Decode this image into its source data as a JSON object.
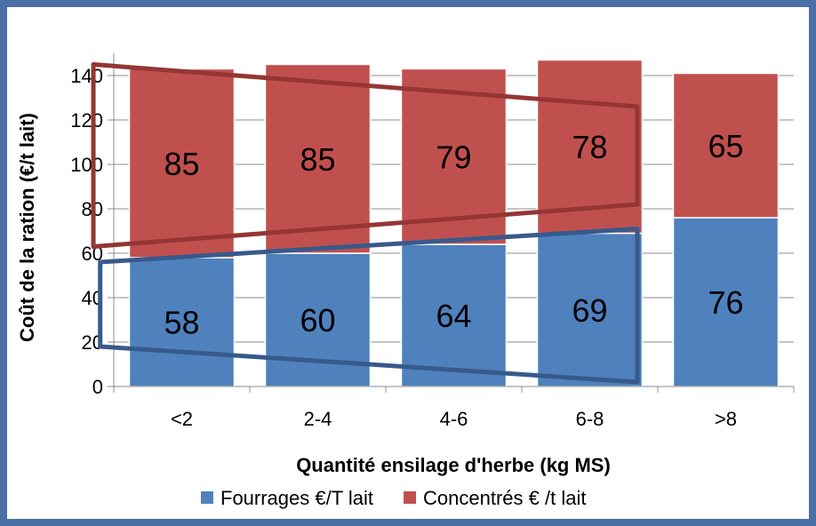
{
  "chart_data": {
    "type": "bar",
    "stacked": true,
    "categories": [
      "<2",
      "2-4",
      "4-6",
      "6-8",
      ">8"
    ],
    "series": [
      {
        "name": "Fourrages €/T lait",
        "values": [
          58,
          60,
          64,
          69,
          76
        ],
        "color": "#4f81bd"
      },
      {
        "name": "Concentrés € /t lait",
        "values": [
          85,
          85,
          79,
          78,
          65
        ],
        "color": "#c0504d"
      }
    ],
    "xlabel": "Quantité ensilage d'herbe (kg MS)",
    "ylabel": "Coût de la ration (€/t lait)",
    "ylim": [
      0,
      150
    ],
    "yticks": [
      0,
      20,
      40,
      60,
      80,
      100,
      120,
      140
    ],
    "grid": true,
    "legend_position": "bottom",
    "annotations": [
      {
        "type": "trapezoid-outline",
        "color": "#943634",
        "points": [
          [
            -0.65,
            145
          ],
          [
            3.35,
            126
          ],
          [
            3.35,
            82
          ],
          [
            -0.65,
            63
          ]
        ]
      },
      {
        "type": "trapezoid-outline",
        "color": "#375a8c",
        "points": [
          [
            -0.6,
            56
          ],
          [
            3.35,
            71
          ],
          [
            3.35,
            2
          ],
          [
            -0.6,
            18
          ]
        ]
      }
    ]
  }
}
